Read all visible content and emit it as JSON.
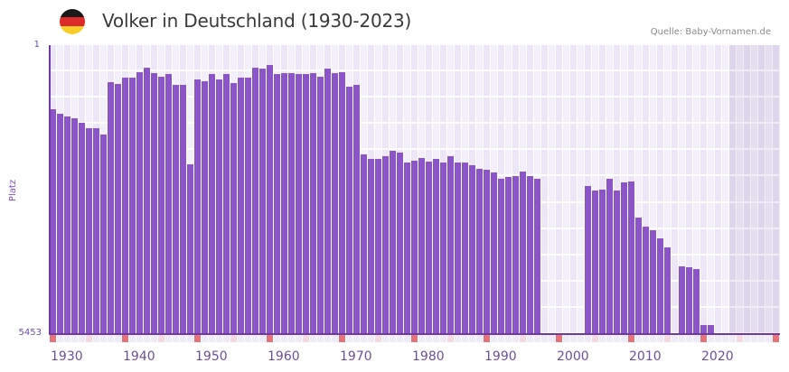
{
  "header": {
    "title": "Volker in Deutschland (1930-2023)",
    "source": "Quelle: Baby-Vornamen.de",
    "flag_colors": [
      "#1a1a1a",
      "#dd2b2b",
      "#f6cf2a"
    ]
  },
  "colors": {
    "bar": "#8b55c7",
    "axis": "#6e3aa6",
    "grid_cell_a": "#f3effb",
    "grid_cell_b": "#ece6f7",
    "marker_decade": "#e57377",
    "marker_half": "#f5d9e0",
    "marker_default": "#efeaf8"
  },
  "chart_data": {
    "type": "bar",
    "title": "Volker in Deutschland (1930-2023)",
    "xlabel": "",
    "ylabel": "Platz",
    "ylim": [
      1,
      5453
    ],
    "y_inverted": true,
    "y_ticks": [
      "1",
      "5453"
    ],
    "x_ticks": [
      "1930",
      "1940",
      "1950",
      "1960",
      "1970",
      "1980",
      "1990",
      "2000",
      "2010",
      "2020"
    ],
    "x_range": [
      1930,
      2030
    ],
    "future_shaded_from": 2024,
    "grid": true,
    "legend": null,
    "years": [
      1930,
      1931,
      1932,
      1933,
      1934,
      1935,
      1936,
      1937,
      1938,
      1939,
      1940,
      1941,
      1942,
      1943,
      1944,
      1945,
      1946,
      1947,
      1948,
      1949,
      1950,
      1951,
      1952,
      1953,
      1954,
      1955,
      1956,
      1957,
      1958,
      1959,
      1960,
      1961,
      1962,
      1963,
      1964,
      1965,
      1966,
      1967,
      1968,
      1969,
      1970,
      1971,
      1972,
      1973,
      1974,
      1975,
      1976,
      1977,
      1978,
      1979,
      1980,
      1981,
      1982,
      1983,
      1984,
      1985,
      1986,
      1987,
      1988,
      1989,
      1990,
      1991,
      1992,
      1993,
      1994,
      1995,
      1996,
      1997,
      1998,
      1999,
      2000,
      2001,
      2002,
      2003,
      2004,
      2005,
      2006,
      2007,
      2008,
      2009,
      2010,
      2011,
      2012,
      2013,
      2014,
      2015,
      2016,
      2017,
      2018,
      2019,
      2020,
      2021,
      2022,
      2023
    ],
    "values": [
      1211,
      1296,
      1347,
      1381,
      1466,
      1569,
      1569,
      1688,
      700,
      734,
      614,
      614,
      512,
      427,
      529,
      597,
      546,
      751,
      751,
      2250,
      648,
      682,
      546,
      648,
      546,
      717,
      614,
      614,
      427,
      444,
      376,
      546,
      529,
      529,
      546,
      546,
      529,
      597,
      444,
      529,
      512,
      785,
      751,
      2063,
      2148,
      2148,
      2097,
      1995,
      2029,
      2216,
      2182,
      2131,
      2199,
      2148,
      2216,
      2097,
      2216,
      2216,
      2267,
      2335,
      2352,
      2403,
      2523,
      2489,
      2472,
      2386,
      2472,
      2523,
      null,
      null,
      null,
      null,
      null,
      null,
      2659,
      2744,
      2727,
      2523,
      2744,
      2591,
      2574,
      3255,
      3426,
      3494,
      3647,
      3818,
      null,
      4175,
      4192,
      4226,
      5283,
      5283,
      null,
      null
    ]
  }
}
